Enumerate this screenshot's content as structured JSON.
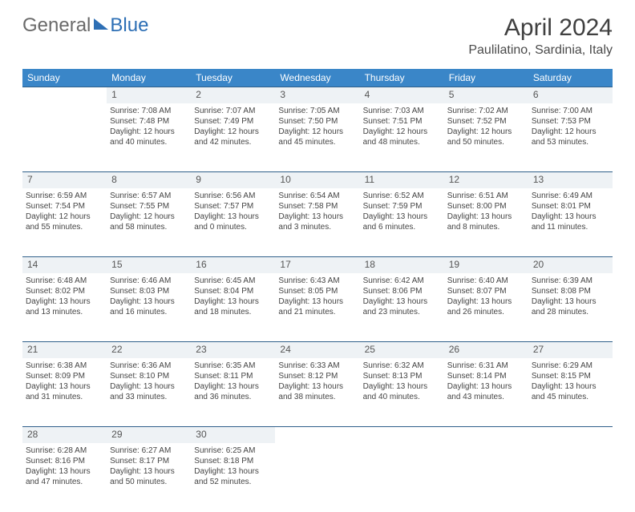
{
  "logo": {
    "general": "General",
    "blue": "Blue"
  },
  "title": "April 2024",
  "location": "Paulilatino, Sardinia, Italy",
  "header_bg": "#3a86c8",
  "daynum_bg": "#eef2f5",
  "border_color": "#2f5f8a",
  "weekdays": [
    "Sunday",
    "Monday",
    "Tuesday",
    "Wednesday",
    "Thursday",
    "Friday",
    "Saturday"
  ],
  "start_offset": 1,
  "days": [
    {
      "n": "1",
      "sr": "7:08 AM",
      "ss": "7:48 PM",
      "dl": "12 hours and 40 minutes."
    },
    {
      "n": "2",
      "sr": "7:07 AM",
      "ss": "7:49 PM",
      "dl": "12 hours and 42 minutes."
    },
    {
      "n": "3",
      "sr": "7:05 AM",
      "ss": "7:50 PM",
      "dl": "12 hours and 45 minutes."
    },
    {
      "n": "4",
      "sr": "7:03 AM",
      "ss": "7:51 PM",
      "dl": "12 hours and 48 minutes."
    },
    {
      "n": "5",
      "sr": "7:02 AM",
      "ss": "7:52 PM",
      "dl": "12 hours and 50 minutes."
    },
    {
      "n": "6",
      "sr": "7:00 AM",
      "ss": "7:53 PM",
      "dl": "12 hours and 53 minutes."
    },
    {
      "n": "7",
      "sr": "6:59 AM",
      "ss": "7:54 PM",
      "dl": "12 hours and 55 minutes."
    },
    {
      "n": "8",
      "sr": "6:57 AM",
      "ss": "7:55 PM",
      "dl": "12 hours and 58 minutes."
    },
    {
      "n": "9",
      "sr": "6:56 AM",
      "ss": "7:57 PM",
      "dl": "13 hours and 0 minutes."
    },
    {
      "n": "10",
      "sr": "6:54 AM",
      "ss": "7:58 PM",
      "dl": "13 hours and 3 minutes."
    },
    {
      "n": "11",
      "sr": "6:52 AM",
      "ss": "7:59 PM",
      "dl": "13 hours and 6 minutes."
    },
    {
      "n": "12",
      "sr": "6:51 AM",
      "ss": "8:00 PM",
      "dl": "13 hours and 8 minutes."
    },
    {
      "n": "13",
      "sr": "6:49 AM",
      "ss": "8:01 PM",
      "dl": "13 hours and 11 minutes."
    },
    {
      "n": "14",
      "sr": "6:48 AM",
      "ss": "8:02 PM",
      "dl": "13 hours and 13 minutes."
    },
    {
      "n": "15",
      "sr": "6:46 AM",
      "ss": "8:03 PM",
      "dl": "13 hours and 16 minutes."
    },
    {
      "n": "16",
      "sr": "6:45 AM",
      "ss": "8:04 PM",
      "dl": "13 hours and 18 minutes."
    },
    {
      "n": "17",
      "sr": "6:43 AM",
      "ss": "8:05 PM",
      "dl": "13 hours and 21 minutes."
    },
    {
      "n": "18",
      "sr": "6:42 AM",
      "ss": "8:06 PM",
      "dl": "13 hours and 23 minutes."
    },
    {
      "n": "19",
      "sr": "6:40 AM",
      "ss": "8:07 PM",
      "dl": "13 hours and 26 minutes."
    },
    {
      "n": "20",
      "sr": "6:39 AM",
      "ss": "8:08 PM",
      "dl": "13 hours and 28 minutes."
    },
    {
      "n": "21",
      "sr": "6:38 AM",
      "ss": "8:09 PM",
      "dl": "13 hours and 31 minutes."
    },
    {
      "n": "22",
      "sr": "6:36 AM",
      "ss": "8:10 PM",
      "dl": "13 hours and 33 minutes."
    },
    {
      "n": "23",
      "sr": "6:35 AM",
      "ss": "8:11 PM",
      "dl": "13 hours and 36 minutes."
    },
    {
      "n": "24",
      "sr": "6:33 AM",
      "ss": "8:12 PM",
      "dl": "13 hours and 38 minutes."
    },
    {
      "n": "25",
      "sr": "6:32 AM",
      "ss": "8:13 PM",
      "dl": "13 hours and 40 minutes."
    },
    {
      "n": "26",
      "sr": "6:31 AM",
      "ss": "8:14 PM",
      "dl": "13 hours and 43 minutes."
    },
    {
      "n": "27",
      "sr": "6:29 AM",
      "ss": "8:15 PM",
      "dl": "13 hours and 45 minutes."
    },
    {
      "n": "28",
      "sr": "6:28 AM",
      "ss": "8:16 PM",
      "dl": "13 hours and 47 minutes."
    },
    {
      "n": "29",
      "sr": "6:27 AM",
      "ss": "8:17 PM",
      "dl": "13 hours and 50 minutes."
    },
    {
      "n": "30",
      "sr": "6:25 AM",
      "ss": "8:18 PM",
      "dl": "13 hours and 52 minutes."
    }
  ],
  "labels": {
    "sunrise": "Sunrise:",
    "sunset": "Sunset:",
    "daylight": "Daylight:"
  }
}
